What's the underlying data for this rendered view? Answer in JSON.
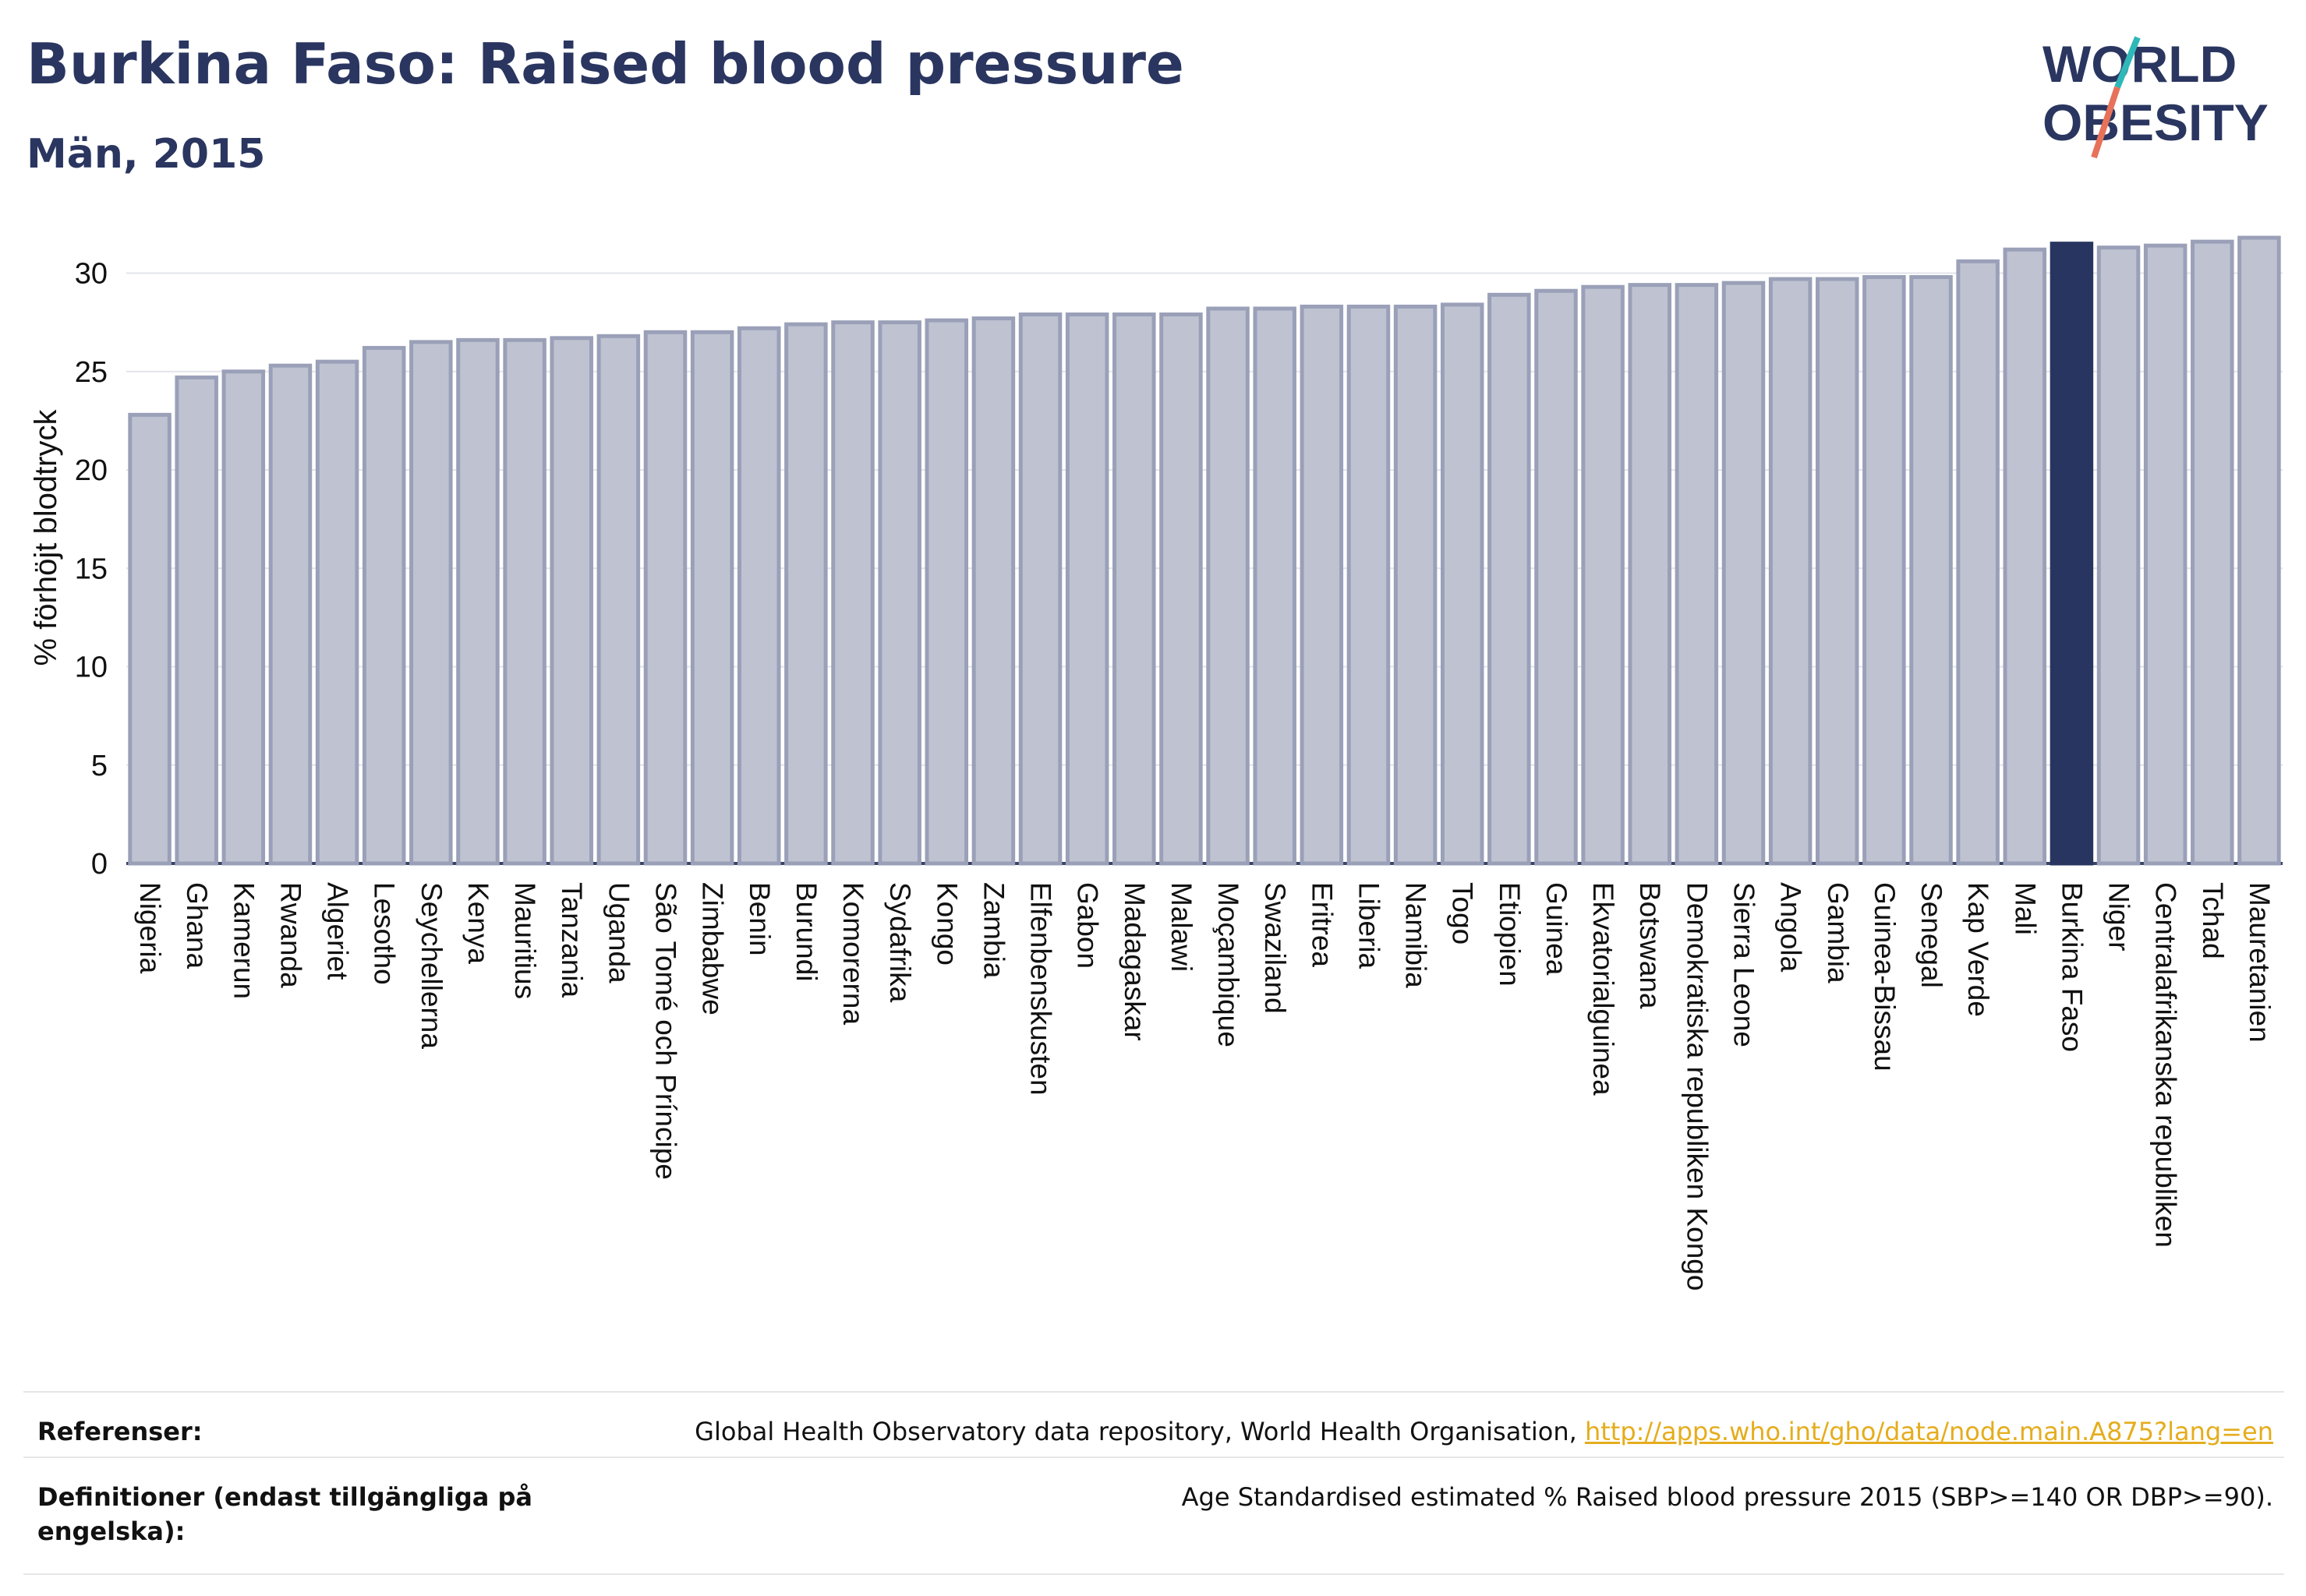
{
  "header": {
    "title": "Burkina Faso: Raised blood pressure",
    "subtitle": "Män, 2015",
    "logo_text": [
      "WORLD",
      "OBESITY"
    ]
  },
  "colors": {
    "bar": "#bfc3d1",
    "bar_edge": "#9aa0b8",
    "highlight": "#283560",
    "text": "#2a3660",
    "link": "#e5ad1d"
  },
  "chart_data": {
    "type": "bar",
    "title": "Burkina Faso: Raised blood pressure",
    "subtitle": "Män, 2015",
    "xlabel": "",
    "ylabel": "% förhöjt blodtryck",
    "ylim": [
      0,
      32
    ],
    "yticks": [
      0,
      5,
      10,
      15,
      20,
      25,
      30
    ],
    "grid": true,
    "highlight": "Burkina Faso",
    "categories": [
      "Nigeria",
      "Ghana",
      "Kamerun",
      "Rwanda",
      "Algeriet",
      "Lesotho",
      "Seychellerna",
      "Kenya",
      "Mauritius",
      "Tanzania",
      "Uganda",
      "São Tomé och Príncipe",
      "Zimbabwe",
      "Benin",
      "Burundi",
      "Komorerna",
      "Sydafrika",
      "Kongo",
      "Zambia",
      "Elfenbenskusten",
      "Gabon",
      "Madagaskar",
      "Malawi",
      "Moçambique",
      "Swaziland",
      "Eritrea",
      "Liberia",
      "Namibia",
      "Togo",
      "Etiopien",
      "Guinea",
      "Ekvatorialguinea",
      "Botswana",
      "Demokratiska republiken Kongo",
      "Sierra Leone",
      "Angola",
      "Gambia",
      "Guinea-Bissau",
      "Senegal",
      "Kap Verde",
      "Mali",
      "Burkina Faso",
      "Niger",
      "Centralafrikanska republiken",
      "Tchad",
      "Mauretanien"
    ],
    "values": [
      22.8,
      24.7,
      25.0,
      25.3,
      25.5,
      26.2,
      26.5,
      26.6,
      26.6,
      26.7,
      26.8,
      27.0,
      27.0,
      27.2,
      27.4,
      27.5,
      27.5,
      27.6,
      27.7,
      27.9,
      27.9,
      27.9,
      27.9,
      28.2,
      28.2,
      28.3,
      28.3,
      28.3,
      28.4,
      28.9,
      29.1,
      29.3,
      29.4,
      29.4,
      29.5,
      29.7,
      29.7,
      29.8,
      29.8,
      30.6,
      31.2,
      31.5,
      31.3,
      31.4,
      31.6,
      31.8
    ]
  },
  "footer": {
    "references_label": "Referenser:",
    "references_text": "Global Health Observatory data repository, World Health Organisation, ",
    "references_link": "http://apps.who.int/gho/data/node.main.A875?lang=en",
    "definitions_label": "Definitioner (endast tillgängliga på engelska):",
    "definitions_text": "Age Standardised estimated % Raised blood pressure 2015 (SBP>=140 OR DBP>=90)."
  }
}
